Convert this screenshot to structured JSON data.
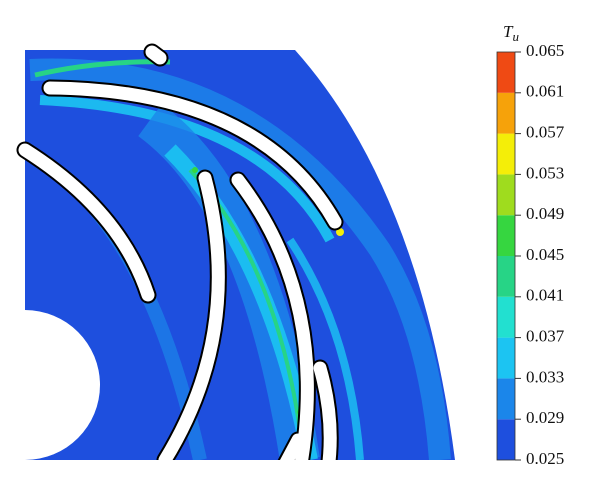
{
  "chart_data": {
    "type": "contour",
    "colorbar_title": {
      "symbol": "T",
      "subscript": "u"
    },
    "zlim": [
      0.025,
      0.065
    ],
    "zticks": [
      0.025,
      0.029,
      0.033,
      0.037,
      0.041,
      0.045,
      0.049,
      0.053,
      0.057,
      0.061,
      0.065
    ],
    "colors": [
      "#1e4fde",
      "#1b86ea",
      "#1cc4f2",
      "#22e0d0",
      "#27d486",
      "#36d640",
      "#9fdc1e",
      "#f4ee08",
      "#f6a20a",
      "#ef4a14"
    ]
  }
}
